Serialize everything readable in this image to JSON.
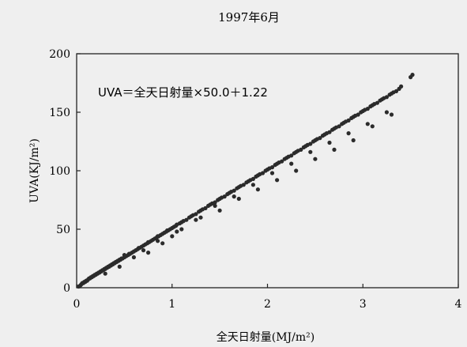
{
  "chart_data": {
    "type": "scatter",
    "title": "1997年6月",
    "xlabel": "全天日射量(MJ/m²)",
    "ylabel": "UVA(KJ/m²)",
    "xlim": [
      0,
      4
    ],
    "ylim": [
      0,
      200
    ],
    "x_ticks": [
      0,
      1,
      2,
      3,
      4
    ],
    "y_ticks": [
      0,
      50,
      100,
      150,
      200
    ],
    "grid": false,
    "legend": "none",
    "annotation": "UVA＝全天日射量×50.0＋1.22",
    "fit": {
      "slope": 50.0,
      "intercept": 1.22
    },
    "marker_color": "#2b2b2b",
    "x": [
      0.02,
      0.04,
      0.05,
      0.06,
      0.07,
      0.08,
      0.09,
      0.1,
      0.11,
      0.12,
      0.13,
      0.14,
      0.15,
      0.16,
      0.17,
      0.18,
      0.19,
      0.2,
      0.21,
      0.22,
      0.23,
      0.24,
      0.25,
      0.26,
      0.27,
      0.28,
      0.29,
      0.3,
      0.31,
      0.32,
      0.33,
      0.34,
      0.35,
      0.36,
      0.37,
      0.38,
      0.39,
      0.4,
      0.41,
      0.42,
      0.43,
      0.44,
      0.45,
      0.46,
      0.47,
      0.48,
      0.5,
      0.52,
      0.54,
      0.55,
      0.56,
      0.58,
      0.6,
      0.62,
      0.64,
      0.65,
      0.66,
      0.68,
      0.7,
      0.72,
      0.74,
      0.75,
      0.76,
      0.78,
      0.8,
      0.82,
      0.84,
      0.85,
      0.86,
      0.88,
      0.9,
      0.92,
      0.94,
      0.95,
      0.96,
      0.98,
      1.0,
      1.02,
      1.04,
      1.05,
      1.08,
      1.1,
      1.12,
      1.15,
      1.18,
      1.2,
      1.22,
      1.25,
      1.28,
      1.3,
      1.32,
      1.35,
      1.38,
      1.4,
      1.42,
      1.45,
      1.48,
      1.5,
      1.52,
      1.55,
      1.58,
      1.6,
      1.62,
      1.65,
      1.68,
      1.7,
      1.72,
      1.75,
      1.78,
      1.8,
      1.82,
      1.85,
      1.88,
      1.9,
      1.92,
      1.95,
      1.98,
      2.0,
      2.02,
      2.05,
      2.08,
      2.1,
      2.12,
      2.15,
      2.18,
      2.2,
      2.22,
      2.25,
      2.28,
      2.3,
      2.32,
      2.35,
      2.38,
      2.4,
      2.42,
      2.45,
      2.48,
      2.5,
      2.52,
      2.55,
      2.58,
      2.6,
      2.62,
      2.65,
      2.68,
      2.7,
      2.72,
      2.75,
      2.78,
      2.8,
      2.82,
      2.85,
      2.88,
      2.9,
      2.92,
      2.95,
      2.98,
      3.0,
      3.02,
      3.05,
      3.08,
      3.1,
      3.12,
      3.15,
      3.18,
      3.2,
      3.22,
      3.25,
      3.28,
      3.3,
      3.32,
      3.35,
      3.38,
      3.4,
      3.5,
      3.52,
      0.3,
      0.45,
      0.6,
      0.75,
      0.9,
      1.0,
      1.1,
      1.3,
      1.5,
      1.7,
      1.9,
      2.1,
      2.3,
      2.5,
      2.7,
      2.9,
      3.1,
      3.3,
      0.5,
      0.7,
      0.85,
      1.05,
      1.25,
      1.45,
      1.65,
      1.85,
      2.05,
      2.25,
      2.45,
      2.65,
      2.85,
      3.05,
      3.25
    ],
    "y": [
      1,
      2,
      3,
      4,
      4,
      5,
      5,
      6,
      6,
      7,
      8,
      8,
      9,
      9,
      10,
      10,
      11,
      11,
      12,
      12,
      13,
      13,
      14,
      14,
      15,
      15,
      16,
      16,
      17,
      17,
      18,
      18,
      19,
      19,
      20,
      20,
      21,
      21,
      22,
      22,
      23,
      23,
      24,
      24,
      25,
      25,
      26,
      27,
      28,
      29,
      29,
      30,
      31,
      32,
      33,
      34,
      34,
      35,
      36,
      37,
      38,
      39,
      39,
      40,
      41,
      42,
      43,
      44,
      44,
      45,
      46,
      47,
      48,
      49,
      49,
      50,
      51,
      52,
      53,
      54,
      55,
      56,
      57,
      58,
      60,
      61,
      62,
      63,
      65,
      66,
      67,
      68,
      70,
      71,
      72,
      73,
      75,
      76,
      77,
      78,
      80,
      81,
      82,
      83,
      85,
      86,
      87,
      88,
      90,
      91,
      92,
      93,
      95,
      96,
      97,
      98,
      100,
      101,
      102,
      103,
      105,
      106,
      107,
      108,
      110,
      111,
      112,
      113,
      115,
      116,
      117,
      118,
      120,
      121,
      122,
      123,
      125,
      126,
      127,
      128,
      130,
      131,
      132,
      133,
      135,
      136,
      137,
      138,
      140,
      141,
      142,
      143,
      145,
      146,
      147,
      148,
      150,
      151,
      152,
      153,
      155,
      156,
      157,
      158,
      160,
      161,
      162,
      163,
      165,
      166,
      167,
      168,
      170,
      172,
      180,
      182,
      12,
      18,
      26,
      30,
      38,
      44,
      50,
      60,
      66,
      76,
      84,
      92,
      100,
      110,
      118,
      126,
      138,
      148,
      28,
      32,
      40,
      48,
      58,
      70,
      78,
      88,
      98,
      106,
      116,
      124,
      132,
      140,
      150
    ]
  }
}
